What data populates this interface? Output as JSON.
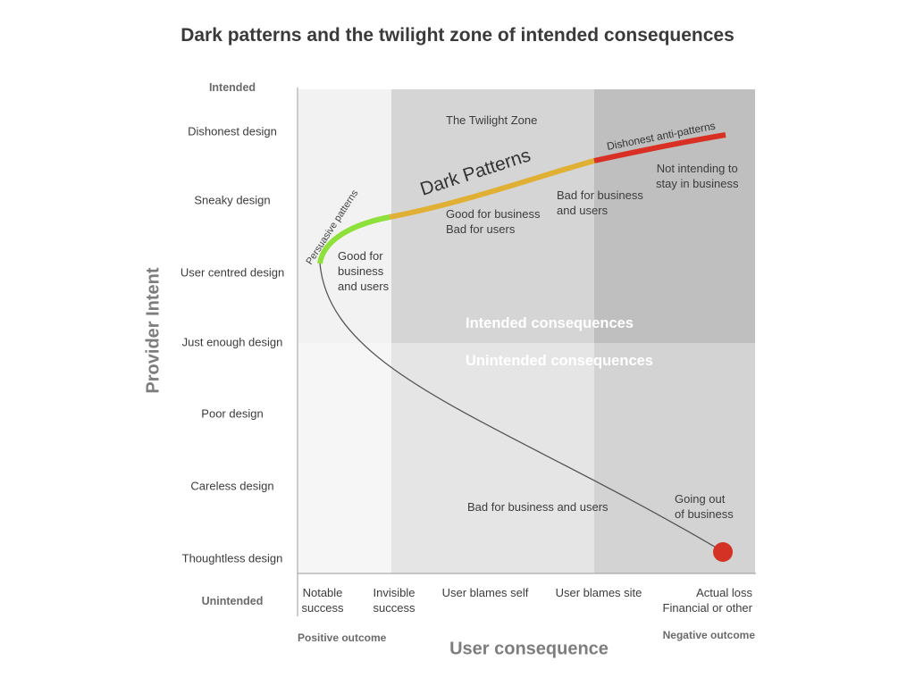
{
  "title": "Dark patterns and the twilight zone of intended consequences",
  "y_axis": {
    "title": "Provider Intent",
    "top_label": "Intended",
    "bottom_label": "Unintended",
    "levels": [
      "Dishonest design",
      "Sneaky design",
      "User centred design",
      "Just enough design",
      "Poor design",
      "Careless design",
      "Thoughtless design"
    ]
  },
  "x_axis": {
    "title": "User consequence",
    "left_outcome": "Positive outcome",
    "right_outcome": "Negative outcome",
    "stages": [
      {
        "line1": "Notable",
        "line2": "success"
      },
      {
        "line1": "Invisible",
        "line2": "success"
      },
      {
        "line1": "User blames self",
        "line2": ""
      },
      {
        "line1": "User blames site",
        "line2": ""
      },
      {
        "line1": "Actual loss",
        "line2": "Financial or other"
      }
    ]
  },
  "zones": {
    "twilight": "The Twilight Zone",
    "intended": "Intended consequences",
    "unintended": "Unintended consequences"
  },
  "curve_labels": {
    "persuasive": "Persuasive patterns",
    "dark": "Dark Patterns",
    "anti": "Dishonest anti-patterns"
  },
  "notes": {
    "good_both": "Good for\nbusiness\nand users",
    "good_business": "Good for business\nBad for users",
    "bad_both_upper": "Bad for business\nand users",
    "not_intending": "Not intending to\nstay in business",
    "bad_both_lower": "Bad for business and users",
    "going_out": "Going out\nof business"
  },
  "colors": {
    "persuasive": "#8ee03a",
    "dark": "#e0b034",
    "anti": "#d83024",
    "end_dot": "#d33224"
  }
}
